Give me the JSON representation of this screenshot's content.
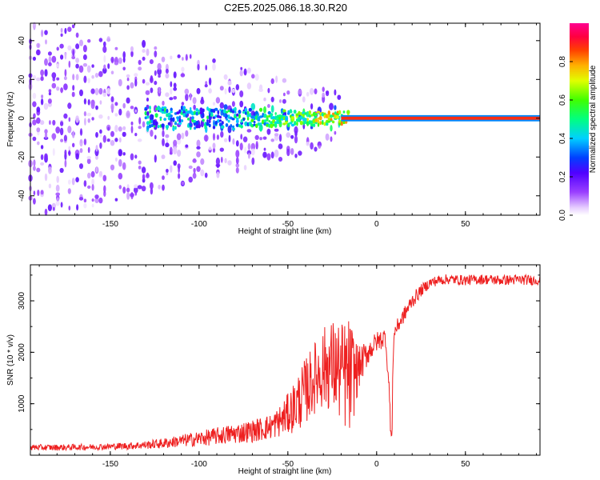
{
  "title": "C2E5.2025.086.18.30.R20",
  "colors": {
    "background": "#ffffff",
    "axis": "#000000",
    "snr_line": "#ee2020",
    "spectrum_low": "#e8d8ff",
    "spectrum_mid": "#7a00ff"
  },
  "chart_data": [
    {
      "type": "heatmap",
      "xlabel": "Height of straight line (km)",
      "ylabel": "Frequency (Hz)",
      "xlim": [
        -195,
        92
      ],
      "ylim": [
        -50,
        49
      ],
      "x_ticks": [
        -150,
        -100,
        -50,
        0,
        50
      ],
      "x_tick_labels": [
        "-150",
        "-100",
        "-50",
        "0",
        "50"
      ],
      "y_ticks": [
        -40,
        -20,
        0,
        20,
        40
      ],
      "y_tick_labels": [
        "-40",
        "-20",
        "0",
        "20",
        "40"
      ],
      "grid": false,
      "colorbar": {
        "label": "Normalized spectral amplitude",
        "range": [
          0.0,
          1.0
        ],
        "ticks": [
          0.0,
          0.2,
          0.4,
          0.6,
          0.8
        ],
        "tick_labels": [
          "0.0",
          "0.2",
          "0.4",
          "0.6",
          "0.8"
        ],
        "colormap": "rainbow (white-violet-blue-cyan-green-yellow-red-magenta)"
      },
      "features": {
        "signal_frequency_hz": 0,
        "noise_region_x": [
          -195,
          -20
        ],
        "strong_line_x": [
          -20,
          92
        ]
      }
    },
    {
      "type": "line",
      "xlabel": "Height of straight line (km)",
      "ylabel": "SNR (10 * v/v)",
      "xlim": [
        -195,
        92
      ],
      "ylim": [
        0,
        3700
      ],
      "x_ticks": [
        -150,
        -100,
        -50,
        0,
        50
      ],
      "x_tick_labels": [
        "-150",
        "-100",
        "-50",
        "0",
        "50"
      ],
      "y_ticks": [
        1000,
        2000,
        3000
      ],
      "y_tick_labels": [
        "1000",
        "2000",
        "3000"
      ],
      "grid": false,
      "series": [
        {
          "x": [
            -195,
            -180,
            -160,
            -140,
            -130,
            -120,
            -110,
            -100,
            -90,
            -80,
            -70,
            -60,
            -55,
            -50,
            -45,
            -40,
            -35,
            -30,
            -25,
            -20,
            -15,
            -10,
            -5,
            0,
            5,
            8,
            10,
            15,
            20,
            25,
            30,
            35,
            40,
            50,
            60,
            70,
            80,
            92
          ],
          "values": [
            150,
            150,
            160,
            180,
            200,
            230,
            280,
            320,
            370,
            420,
            470,
            550,
            650,
            800,
            1000,
            1250,
            1500,
            1700,
            1750,
            1600,
            1500,
            1700,
            2000,
            2200,
            2300,
            800,
            2400,
            2700,
            3000,
            3200,
            3350,
            3400,
            3420,
            3400,
            3420,
            3400,
            3410,
            3400
          ],
          "noise_amplitude": [
            60,
            60,
            60,
            70,
            80,
            100,
            120,
            150,
            170,
            200,
            220,
            250,
            300,
            400,
            550,
            650,
            700,
            800,
            900,
            1000,
            1200,
            400,
            250,
            200,
            200,
            100,
            150,
            150,
            150,
            120,
            100,
            100,
            100,
            100,
            100,
            100,
            100,
            100
          ]
        }
      ]
    }
  ]
}
